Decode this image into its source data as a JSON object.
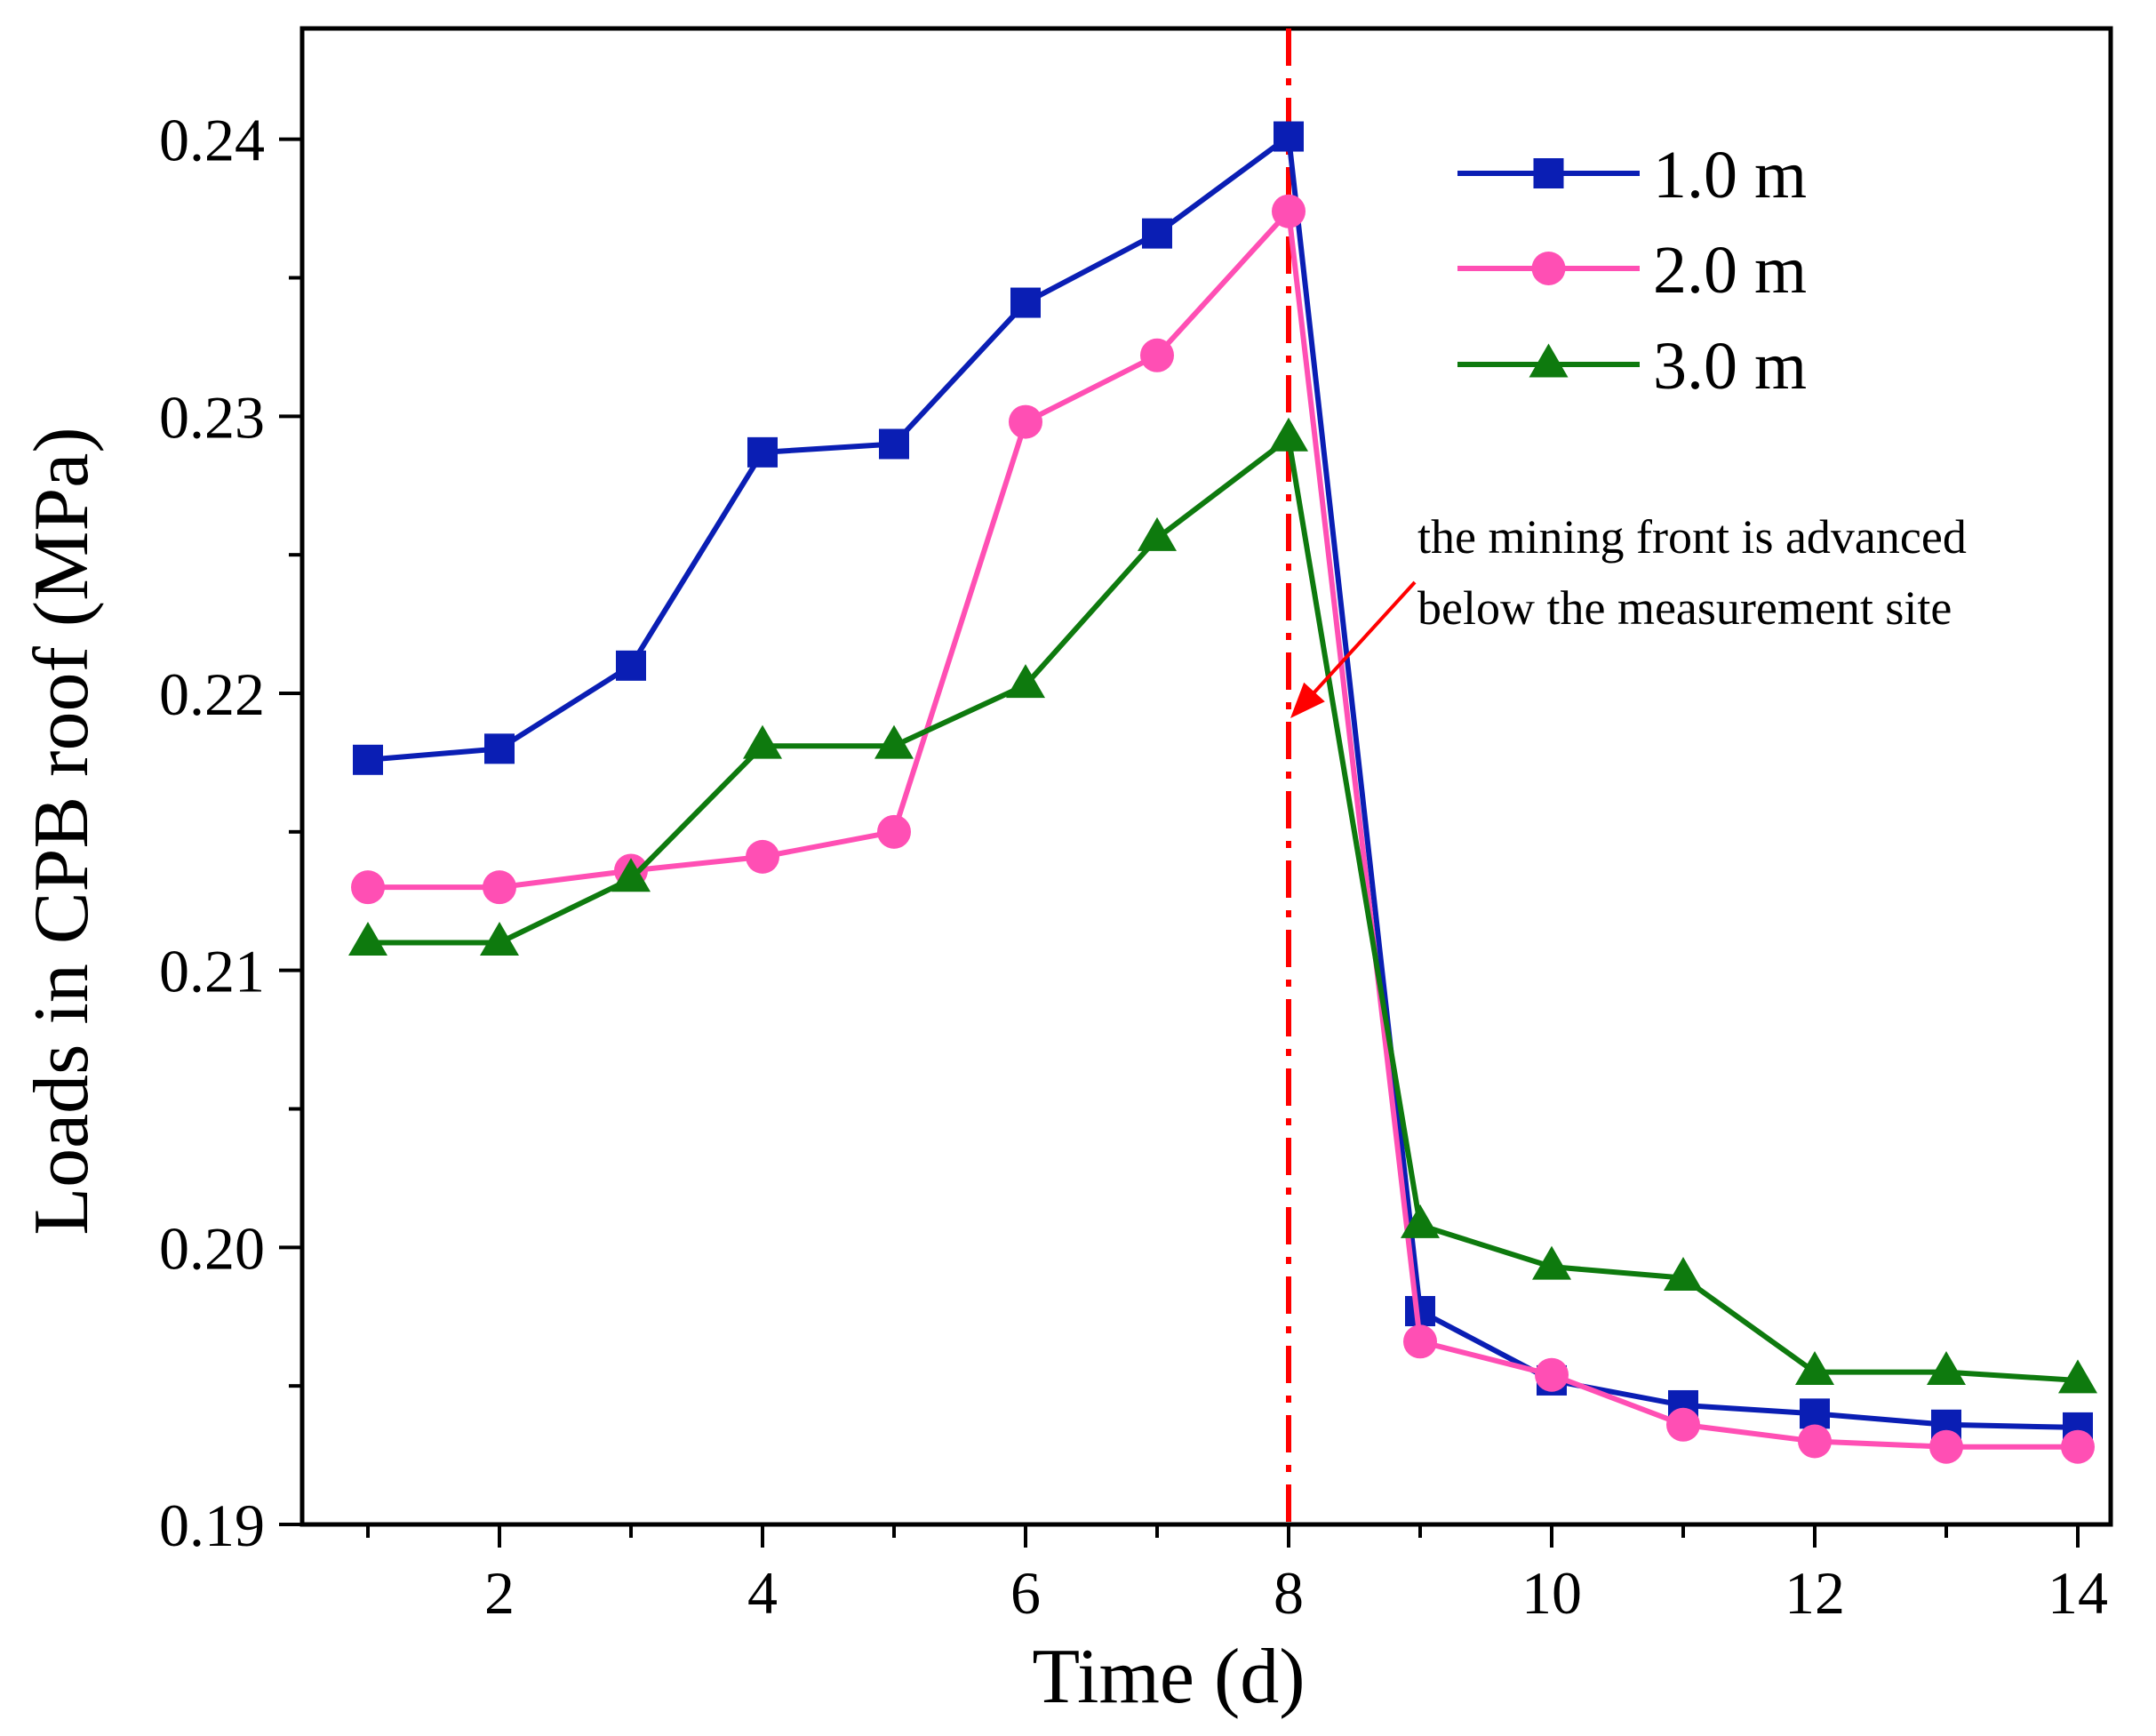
{
  "chart_data": {
    "type": "line",
    "xlabel": "Time (d)",
    "ylabel": "Loads in CPB roof (MPa)",
    "xlim": [
      0.5,
      14.25
    ],
    "ylim": [
      0.19,
      0.244
    ],
    "xticks": [
      2,
      4,
      6,
      8,
      10,
      12,
      14
    ],
    "xticks_minor": [
      1,
      3,
      5,
      7,
      9,
      11,
      13
    ],
    "yticks": [
      0.19,
      0.2,
      0.21,
      0.22,
      0.23,
      0.24
    ],
    "ytick_labels": [
      "0.19",
      "0.20",
      "0.21",
      "0.22",
      "0.23",
      "0.24"
    ],
    "yticks_minor": [
      0.195,
      0.205,
      0.215,
      0.225,
      0.235
    ],
    "x": [
      1,
      2,
      3,
      4,
      5,
      6,
      7,
      8,
      9,
      10,
      11,
      12,
      13,
      14
    ],
    "series": [
      {
        "name": "1.0 m",
        "color": "#0a1eb4",
        "marker": "square",
        "values": [
          0.2176,
          0.218,
          0.221,
          0.2287,
          0.229,
          0.2341,
          0.2366,
          0.2401,
          0.1977,
          0.1952,
          0.1943,
          0.194,
          0.1936,
          0.1935
        ]
      },
      {
        "name": "2.0 m",
        "color": "#ff4fb4",
        "marker": "circle",
        "values": [
          0.213,
          0.213,
          0.2136,
          0.2141,
          0.215,
          0.2298,
          0.2322,
          0.2374,
          0.1966,
          0.1954,
          0.1936,
          0.193,
          0.1928,
          0.1928
        ]
      },
      {
        "name": "3.0 m",
        "color": "#0e7a0e",
        "marker": "triangle",
        "values": [
          0.211,
          0.211,
          0.2133,
          0.2181,
          0.2181,
          0.2203,
          0.2256,
          0.2292,
          0.2008,
          0.1993,
          0.1989,
          0.1955,
          0.1955,
          0.1952
        ]
      }
    ],
    "reference_line": {
      "x": 8,
      "color": "#ff0000",
      "style": "dash-dot"
    },
    "annotation": {
      "lines": [
        "the mining front is advanced",
        "below the measurement site"
      ],
      "arrow_color": "#ff0000"
    },
    "legend": {
      "position": "top-right"
    },
    "grid": false
  }
}
